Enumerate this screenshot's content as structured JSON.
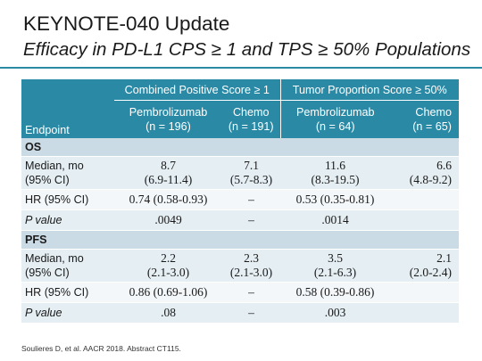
{
  "title": "KEYNOTE-040 Update",
  "subtitle": "Efficacy in PD-L1 CPS ≥ 1 and TPS ≥ 50% Populations",
  "table": {
    "group_headers": [
      "Combined Positive Score ≥ 1",
      "Tumor Proportion Score ≥ 50%"
    ],
    "endpoint_header": "Endpoint",
    "columns": [
      {
        "name": "Pembrolizumab",
        "n": "(n = 196)"
      },
      {
        "name": "Chemo",
        "n": "(n = 191)"
      },
      {
        "name": "Pembrolizumab",
        "n": "(n = 64)"
      },
      {
        "name": "Chemo",
        "n": "(n = 65)"
      }
    ],
    "sections": [
      {
        "label": "OS",
        "rows": [
          {
            "label": "Median, mo",
            "label2": "(95% CI)",
            "values": [
              [
                "8.7",
                "(6.9-11.4)"
              ],
              [
                "7.1",
                "(5.7-8.3)"
              ],
              [
                "11.6",
                "(8.3-19.5)"
              ],
              [
                "6.6",
                "(4.8-9.2)"
              ]
            ]
          },
          {
            "label": "HR (95% CI)",
            "values": [
              "0.74 (0.58-0.93)",
              "–",
              "0.53 (0.35-0.81)",
              ""
            ]
          },
          {
            "label": "P value",
            "values": [
              ".0049",
              "–",
              ".0014",
              ""
            ]
          }
        ]
      },
      {
        "label": "PFS",
        "rows": [
          {
            "label": "Median, mo",
            "label2": "(95% CI)",
            "values": [
              [
                "2.2",
                "(2.1-3.0)"
              ],
              [
                "2.3",
                "(2.1-3.0)"
              ],
              [
                "3.5",
                "(2.1-6.3)"
              ],
              [
                "2.1",
                "(2.0-2.4)"
              ]
            ]
          },
          {
            "label": "HR (95% CI)",
            "values": [
              "0.86 (0.69-1.06)",
              "–",
              "0.58 (0.39-0.86)",
              ""
            ]
          },
          {
            "label": "P value",
            "values": [
              ".08",
              "–",
              ".003",
              ""
            ]
          }
        ]
      }
    ]
  },
  "footnote": "Soulieres D, et al. AACR 2018. Abstract CT115."
}
